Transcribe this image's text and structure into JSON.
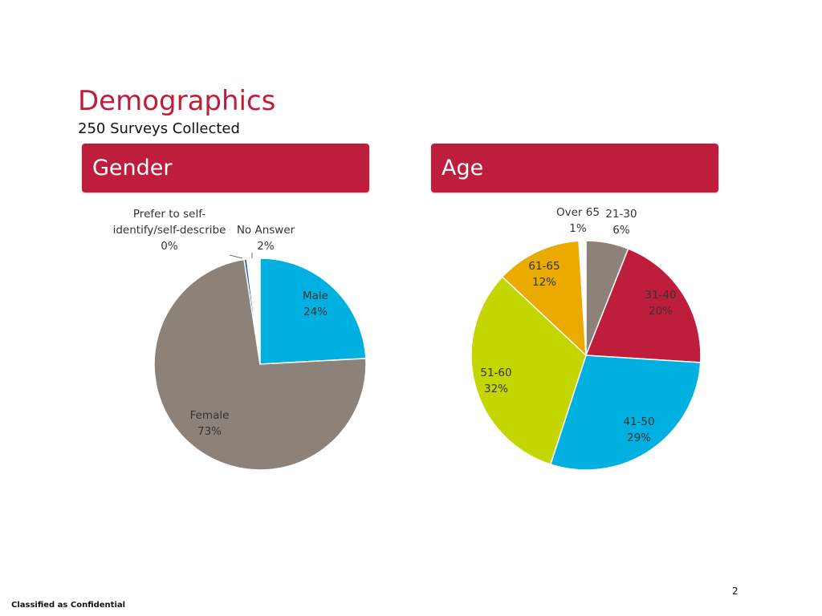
{
  "header": {
    "title": "Demographics",
    "subtitle": "250 Surveys Collected"
  },
  "panels": {
    "gender_label": "Gender",
    "age_label": "Age"
  },
  "footer": {
    "page_number": "2",
    "classification": "Classified as Confidential"
  },
  "colors": {
    "accent": "#be1e3c",
    "male": "#00b0e0",
    "female": "#8c827a",
    "self_describe": "#1b5ea8",
    "no_answer": "#ffffff",
    "age_21_30": "#8c827a",
    "age_31_40": "#be1e3c",
    "age_41_50": "#00b0e0",
    "age_51_60": "#c3d600",
    "age_61_65": "#eaaa00",
    "age_over_65": "#ffffff"
  },
  "chart_data": [
    {
      "type": "pie",
      "title": "Gender",
      "categories": [
        "Male",
        "Female",
        "Prefer to self-identify/self-describe",
        "No Answer"
      ],
      "values": [
        24,
        73,
        0.4,
        2
      ],
      "labels": [
        "24%",
        "73%",
        "0%",
        "2%"
      ],
      "label_lines": {
        "Male": [
          "Male",
          "24%"
        ],
        "Female": [
          "Female",
          "73%"
        ],
        "Prefer to self-identify/self-describe": [
          "Prefer to self-",
          "identify/self-describe",
          "0%"
        ],
        "No Answer": [
          "No Answer",
          "2%"
        ]
      },
      "colors": [
        "#00b0e0",
        "#8c827a",
        "#1b5ea8",
        "#ffffff"
      ],
      "unit": "%"
    },
    {
      "type": "pie",
      "title": "Age",
      "categories": [
        "21-30",
        "31-40",
        "41-50",
        "51-60",
        "61-65",
        "Over 65"
      ],
      "values": [
        6,
        20,
        29,
        32,
        12,
        1
      ],
      "labels": [
        "6%",
        "20%",
        "29%",
        "32%",
        "12%",
        "1%"
      ],
      "colors": [
        "#8c827a",
        "#be1e3c",
        "#00b0e0",
        "#c3d600",
        "#eaaa00",
        "#ffffff"
      ],
      "unit": "%"
    }
  ]
}
